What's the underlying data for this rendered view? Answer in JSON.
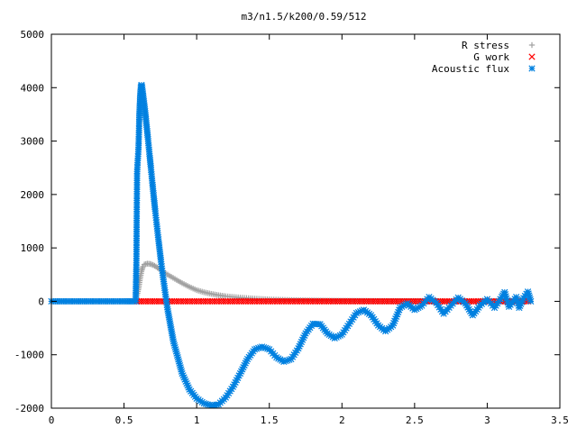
{
  "chart_data": {
    "type": "scatter",
    "title": "m3/n1.5/k200/0.59/512",
    "xlabel": "",
    "ylabel": "",
    "xlim": [
      0,
      3.5
    ],
    "ylim": [
      -2000,
      5000
    ],
    "x_ticks": [
      0,
      0.5,
      1,
      1.5,
      2,
      2.5,
      3,
      3.5
    ],
    "x_tick_labels": [
      "0",
      "0.5",
      "1",
      "1.5",
      "2",
      "2.5",
      "3",
      "3.5"
    ],
    "y_ticks": [
      -2000,
      -1000,
      0,
      1000,
      2000,
      3000,
      4000,
      5000
    ],
    "y_tick_labels": [
      "-2000",
      "-1000",
      "0",
      "1000",
      "2000",
      "3000",
      "4000",
      "5000"
    ],
    "grid": false,
    "legend_position": "top-right",
    "series": [
      {
        "name": "R stress",
        "marker": "+",
        "color": "#a0a0a0",
        "points": [
          [
            0.0,
            0
          ],
          [
            0.1,
            0
          ],
          [
            0.2,
            0
          ],
          [
            0.3,
            0
          ],
          [
            0.4,
            0
          ],
          [
            0.5,
            0
          ],
          [
            0.58,
            0
          ],
          [
            0.59,
            120
          ],
          [
            0.6,
            250
          ],
          [
            0.61,
            420
          ],
          [
            0.62,
            560
          ],
          [
            0.63,
            650
          ],
          [
            0.64,
            690
          ],
          [
            0.66,
            705
          ],
          [
            0.68,
            700
          ],
          [
            0.7,
            680
          ],
          [
            0.72,
            650
          ],
          [
            0.74,
            610
          ],
          [
            0.76,
            570
          ],
          [
            0.8,
            500
          ],
          [
            0.85,
            420
          ],
          [
            0.9,
            340
          ],
          [
            0.95,
            270
          ],
          [
            1.0,
            210
          ],
          [
            1.05,
            170
          ],
          [
            1.1,
            140
          ],
          [
            1.15,
            115
          ],
          [
            1.2,
            95
          ],
          [
            1.3,
            70
          ],
          [
            1.4,
            50
          ],
          [
            1.5,
            35
          ],
          [
            1.7,
            20
          ],
          [
            1.9,
            12
          ],
          [
            2.1,
            8
          ],
          [
            2.3,
            5
          ],
          [
            2.5,
            3
          ],
          [
            2.8,
            2
          ],
          [
            3.1,
            2
          ],
          [
            3.3,
            2
          ]
        ]
      },
      {
        "name": "G work",
        "marker": "x",
        "color": "#ff0000",
        "points": [
          [
            0.59,
            0
          ],
          [
            0.8,
            0
          ],
          [
            1.0,
            0
          ],
          [
            1.2,
            0
          ],
          [
            1.4,
            0
          ],
          [
            1.6,
            0
          ],
          [
            1.8,
            0
          ],
          [
            2.0,
            0
          ],
          [
            2.2,
            0
          ],
          [
            2.4,
            0
          ],
          [
            2.6,
            0
          ],
          [
            2.8,
            0
          ],
          [
            3.0,
            0
          ],
          [
            3.2,
            0
          ],
          [
            3.28,
            0
          ]
        ]
      },
      {
        "name": "Acoustic flux",
        "marker": "*",
        "color": "#0080e0",
        "points": [
          [
            0.0,
            0
          ],
          [
            0.1,
            0
          ],
          [
            0.2,
            0
          ],
          [
            0.3,
            0
          ],
          [
            0.4,
            0
          ],
          [
            0.5,
            0
          ],
          [
            0.58,
            0
          ],
          [
            0.585,
            720
          ],
          [
            0.59,
            2430
          ],
          [
            0.6,
            2880
          ],
          [
            0.605,
            3440
          ],
          [
            0.61,
            3780
          ],
          [
            0.615,
            4000
          ],
          [
            0.62,
            4050
          ],
          [
            0.625,
            4000
          ],
          [
            0.635,
            3780
          ],
          [
            0.645,
            3560
          ],
          [
            0.655,
            3300
          ],
          [
            0.665,
            3040
          ],
          [
            0.675,
            2760
          ],
          [
            0.685,
            2500
          ],
          [
            0.695,
            2220
          ],
          [
            0.705,
            1950
          ],
          [
            0.715,
            1690
          ],
          [
            0.725,
            1440
          ],
          [
            0.735,
            1200
          ],
          [
            0.745,
            970
          ],
          [
            0.755,
            740
          ],
          [
            0.765,
            530
          ],
          [
            0.775,
            330
          ],
          [
            0.785,
            130
          ],
          [
            0.8,
            -150
          ],
          [
            0.82,
            -450
          ],
          [
            0.84,
            -750
          ],
          [
            0.87,
            -1050
          ],
          [
            0.9,
            -1350
          ],
          [
            0.95,
            -1650
          ],
          [
            1.0,
            -1820
          ],
          [
            1.05,
            -1910
          ],
          [
            1.1,
            -1950
          ],
          [
            1.15,
            -1930
          ],
          [
            1.2,
            -1800
          ],
          [
            1.25,
            -1600
          ],
          [
            1.3,
            -1350
          ],
          [
            1.35,
            -1080
          ],
          [
            1.4,
            -900
          ],
          [
            1.45,
            -850
          ],
          [
            1.5,
            -900
          ],
          [
            1.55,
            -1050
          ],
          [
            1.6,
            -1130
          ],
          [
            1.65,
            -1080
          ],
          [
            1.7,
            -880
          ],
          [
            1.75,
            -600
          ],
          [
            1.8,
            -420
          ],
          [
            1.85,
            -430
          ],
          [
            1.9,
            -600
          ],
          [
            1.95,
            -690
          ],
          [
            2.0,
            -620
          ],
          [
            2.05,
            -420
          ],
          [
            2.1,
            -220
          ],
          [
            2.15,
            -160
          ],
          [
            2.2,
            -260
          ],
          [
            2.25,
            -450
          ],
          [
            2.3,
            -560
          ],
          [
            2.35,
            -450
          ],
          [
            2.4,
            -120
          ],
          [
            2.45,
            -40
          ],
          [
            2.5,
            -160
          ],
          [
            2.55,
            -80
          ],
          [
            2.6,
            80
          ],
          [
            2.65,
            -30
          ],
          [
            2.7,
            -230
          ],
          [
            2.75,
            -80
          ],
          [
            2.8,
            70
          ],
          [
            2.85,
            -40
          ],
          [
            2.9,
            -260
          ],
          [
            2.95,
            -80
          ],
          [
            3.0,
            40
          ],
          [
            3.05,
            -120
          ],
          [
            3.1,
            80
          ],
          [
            3.12,
            170
          ],
          [
            3.15,
            -100
          ],
          [
            3.2,
            80
          ],
          [
            3.22,
            -120
          ],
          [
            3.25,
            60
          ],
          [
            3.28,
            180
          ],
          [
            3.3,
            0
          ]
        ]
      }
    ]
  }
}
